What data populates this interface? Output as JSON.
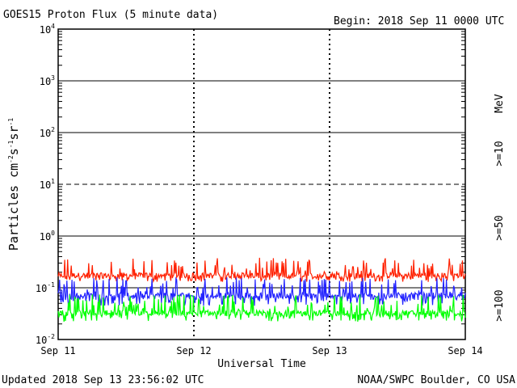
{
  "chart_data": {
    "type": "line",
    "title": "GOES15 Proton Flux (5 minute data)",
    "begin_label": "Begin: 2018 Sep 11 0000 UTC",
    "xlabel": "Universal Time",
    "ylabel_parts": [
      "Particles cm",
      "-2",
      "s",
      "-1",
      "sr",
      "-1"
    ],
    "x_ticks": [
      "Sep 11",
      "Sep 12",
      "Sep 13",
      "Sep 14"
    ],
    "y_ticks": [
      {
        "base": "10",
        "exp": "-2"
      },
      {
        "base": "10",
        "exp": "-1"
      },
      {
        "base": "10",
        "exp": "0"
      },
      {
        "base": "10",
        "exp": "1"
      },
      {
        "base": "10",
        "exp": "2"
      },
      {
        "base": "10",
        "exp": "3"
      },
      {
        "base": "10",
        "exp": "4"
      }
    ],
    "y_scale": "log",
    "ylim": [
      0.01,
      10000
    ],
    "xlim_days": [
      0,
      3
    ],
    "series": [
      {
        "name": ">=10",
        "color": "#ff2000",
        "baseline": 0.17,
        "low": 0.13,
        "high": 0.38
      },
      {
        "name": ">=50",
        "color": "#2222ff",
        "baseline": 0.07,
        "low": 0.045,
        "high": 0.16
      },
      {
        "name": ">=100",
        "color": "#00ff00",
        "baseline": 0.032,
        "low": 0.022,
        "high": 0.075
      }
    ],
    "unit_label": "MeV",
    "footer_left": "Updated 2018 Sep 13 23:56:02 UTC",
    "footer_right": "NOAA/SWPC Boulder, CO USA"
  }
}
